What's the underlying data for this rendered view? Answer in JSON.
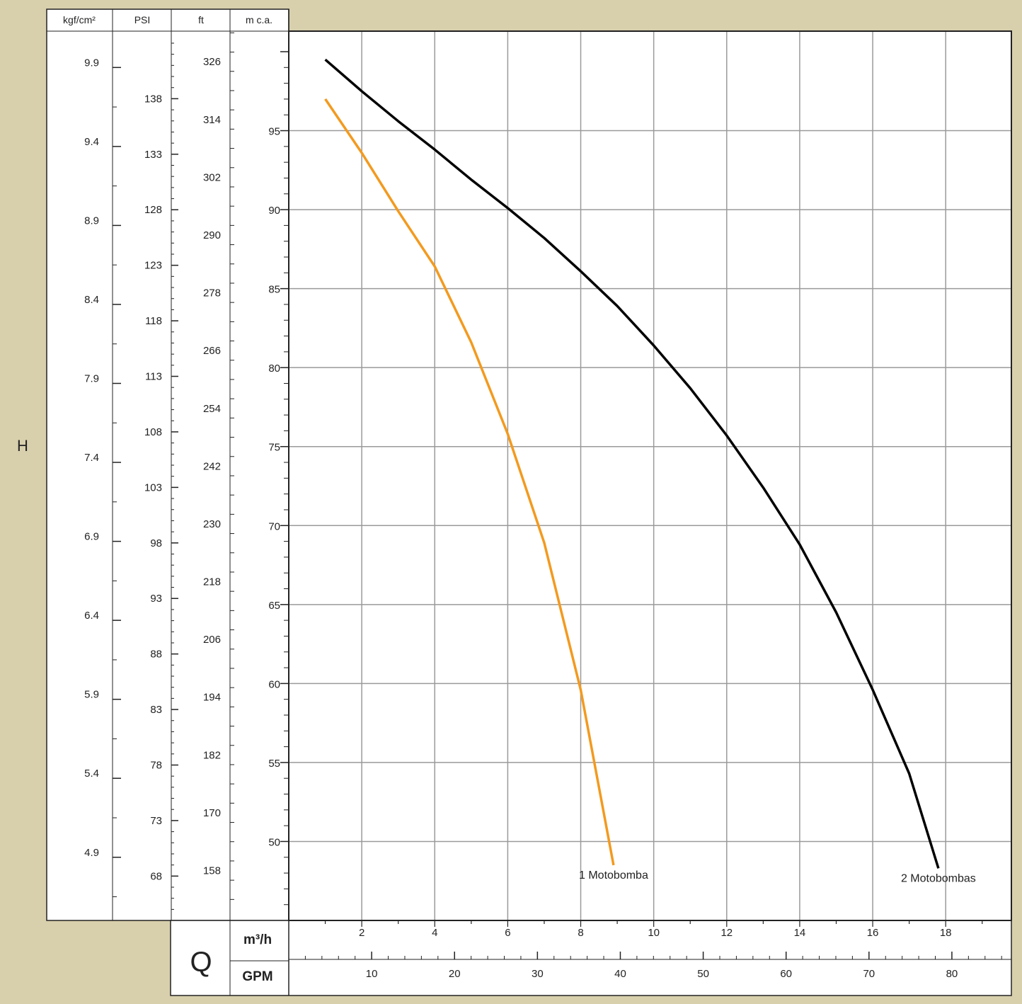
{
  "chart_data": {
    "type": "line",
    "title": "",
    "ylabel": "H",
    "xlabel": "Q",
    "x_axis": {
      "unit": "m³/h",
      "ticks": [
        2,
        4,
        6,
        8,
        10,
        12,
        14,
        16,
        18
      ],
      "xlim": [
        0,
        19.8
      ]
    },
    "x_axis_secondary": {
      "unit": "GPM",
      "ticks": [
        10,
        20,
        30,
        40,
        50,
        60,
        70,
        80
      ]
    },
    "y_axis": {
      "unit": "m c.a.",
      "ticks": [
        50,
        55,
        60,
        65,
        70,
        75,
        80,
        85,
        90,
        95
      ],
      "ylim": [
        45,
        101.3
      ]
    },
    "y_axis_ft": {
      "unit": "ft",
      "ticks": [
        158,
        170,
        182,
        194,
        206,
        218,
        230,
        242,
        254,
        266,
        278,
        290,
        302,
        314,
        326
      ]
    },
    "y_axis_psi": {
      "unit": "PSI",
      "ticks": [
        68,
        73,
        78,
        83,
        88,
        93,
        98,
        103,
        108,
        113,
        118,
        123,
        128,
        133,
        138
      ]
    },
    "y_axis_kgf": {
      "unit": "kgf/cm²",
      "ticks": [
        "4.9",
        "5.4",
        "5.9",
        "6.4",
        "6.9",
        "7.4",
        "7.9",
        "8.4",
        "8.9",
        "9.4",
        "9.9"
      ]
    },
    "grid": true,
    "series": [
      {
        "name": "2 Motobombas",
        "color": "#000000",
        "points": [
          [
            1,
            99.5
          ],
          [
            2,
            97.5
          ],
          [
            3,
            95.6
          ],
          [
            4,
            93.8
          ],
          [
            5,
            91.9
          ],
          [
            6,
            90.1
          ],
          [
            7,
            88.2
          ],
          [
            8,
            86.1
          ],
          [
            9,
            83.9
          ],
          [
            10,
            81.4
          ],
          [
            11,
            78.7
          ],
          [
            12,
            75.7
          ],
          [
            13,
            72.4
          ],
          [
            14,
            68.8
          ],
          [
            15,
            64.5
          ],
          [
            16,
            59.6
          ],
          [
            17,
            54.3
          ],
          [
            17.8,
            48.3
          ]
        ]
      },
      {
        "name": "1 Motobomba",
        "color": "#f39a1f",
        "points": [
          [
            1,
            97
          ],
          [
            2,
            93.6
          ],
          [
            3,
            89.9
          ],
          [
            4,
            86.4
          ],
          [
            5,
            81.6
          ],
          [
            6,
            75.8
          ],
          [
            7,
            68.9
          ],
          [
            8,
            59.6
          ],
          [
            8.9,
            48.5
          ]
        ]
      }
    ]
  }
}
